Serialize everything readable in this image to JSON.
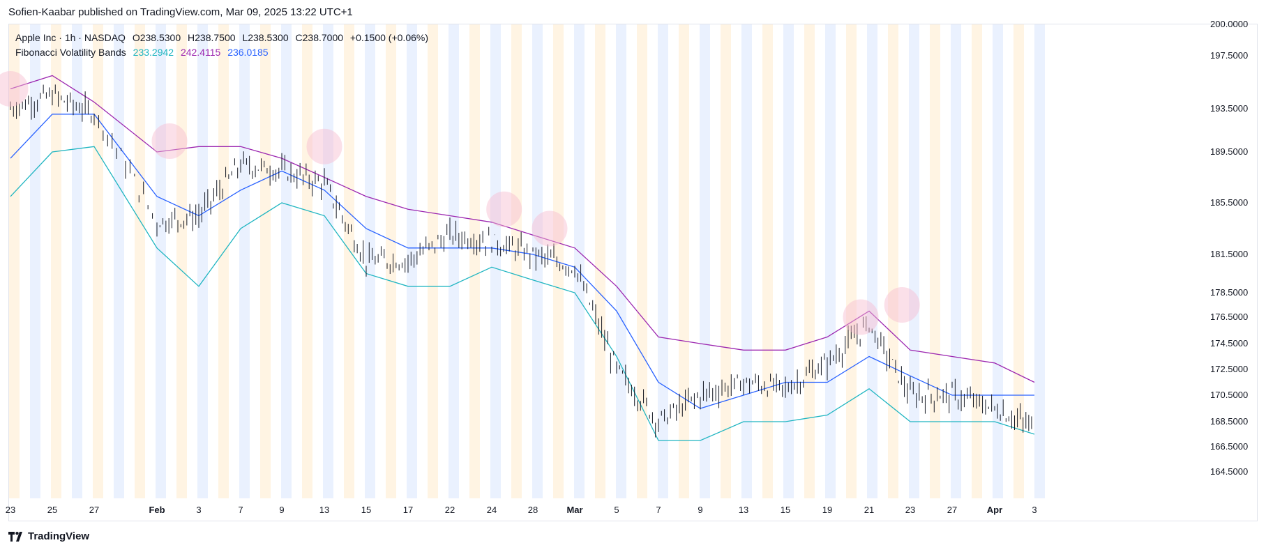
{
  "publisher": "Sofien-Kaabar published on TradingView.com, Mar 09, 2025 13:22 UTC+1",
  "footer_brand": "TradingView",
  "legend": {
    "symbol_line": "Apple Inc · 1h · NASDAQ",
    "open": "O238.5300",
    "high": "H238.7500",
    "low": "L238.5300",
    "close": "C238.7000",
    "change": "+0.1500 (+0.06%)",
    "indicator_name": "Fibonacci Volatility Bands",
    "lower_value": "233.2942",
    "upper_value": "242.4115",
    "middle_value": "236.0185"
  },
  "colors": {
    "candle": "#131722",
    "upper_band": "#9c27b0",
    "middle_band": "#2962ff",
    "lower_band": "#1fb5c1",
    "session_orange": "#fff3e0",
    "session_blue": "#e8f0fe",
    "highlight": "#f8bbd0"
  },
  "chart_data": {
    "type": "ohlc",
    "series": [
      {
        "name": "Apple Inc · 1h · NASDAQ",
        "x": [
          "23",
          "25",
          "27",
          "Feb",
          "3",
          "7",
          "9",
          "13",
          "15",
          "17",
          "22",
          "24",
          "28",
          "Mar",
          "5",
          "7",
          "9",
          "13",
          "15",
          "19",
          "21",
          "23",
          "27",
          "Apr",
          "3"
        ],
        "close_approx": [
          193.5,
          194.5,
          193.0,
          184.0,
          184.5,
          188.5,
          188.0,
          187.0,
          181.0,
          181.0,
          183.0,
          182.5,
          181.5,
          180.5,
          172.5,
          168.5,
          170.5,
          171.5,
          171.0,
          173.0,
          176.0,
          170.5,
          170.5,
          169.5,
          168.0
        ]
      },
      {
        "name": "Fibonacci Volatility Bands upper",
        "values": [
          195,
          196,
          194,
          189.5,
          190,
          190,
          189,
          187.5,
          186,
          185,
          184.5,
          184,
          183,
          182,
          179,
          175,
          174.5,
          174,
          174,
          175,
          177,
          174,
          173.5,
          173,
          171.5
        ]
      },
      {
        "name": "Fibonacci Volatility Bands middle",
        "values": [
          189,
          193,
          193,
          186,
          184.5,
          186.5,
          188,
          186.5,
          183.5,
          182,
          182,
          182,
          181.5,
          180.5,
          177,
          171.5,
          169.5,
          170.5,
          171.5,
          171.5,
          173.5,
          172,
          170.5,
          170.5,
          170.5
        ]
      },
      {
        "name": "Fibonacci Volatility Bands lower",
        "values": [
          186,
          189.5,
          190,
          182,
          179,
          183.5,
          185.5,
          184.5,
          180,
          179,
          179,
          180.5,
          179.5,
          178.5,
          173.5,
          167,
          167,
          168.5,
          168.5,
          169,
          171,
          168.5,
          168.5,
          168.5,
          167.5
        ]
      }
    ],
    "y_ticks": [
      "200.0000",
      "197.5000",
      "193.5000",
      "189.5000",
      "185.5000",
      "181.5000",
      "178.5000",
      "176.5000",
      "174.5000",
      "172.5000",
      "170.5000",
      "168.5000",
      "166.5000",
      "164.5000"
    ],
    "x_ticks": [
      "23",
      "25",
      "27",
      "Feb",
      "3",
      "7",
      "9",
      "13",
      "15",
      "17",
      "22",
      "24",
      "28",
      "Mar",
      "5",
      "7",
      "9",
      "13",
      "15",
      "19",
      "21",
      "23",
      "27",
      "Apr",
      "3"
    ],
    "bold_x_ticks": [
      "Feb",
      "Mar",
      "Apr"
    ],
    "highlight_points": [
      {
        "x_index": 0,
        "y": 195.0
      },
      {
        "x_index": 3.3,
        "y": 190.5
      },
      {
        "x_index": 7.0,
        "y": 190.0
      },
      {
        "x_index": 11.3,
        "y": 185.0
      },
      {
        "x_index": 12.4,
        "y": 183.5
      },
      {
        "x_index": 19.8,
        "y": 176.5
      },
      {
        "x_index": 20.8,
        "y": 177.5
      }
    ],
    "ylim": [
      163.5,
      200.0
    ],
    "grid": false
  }
}
